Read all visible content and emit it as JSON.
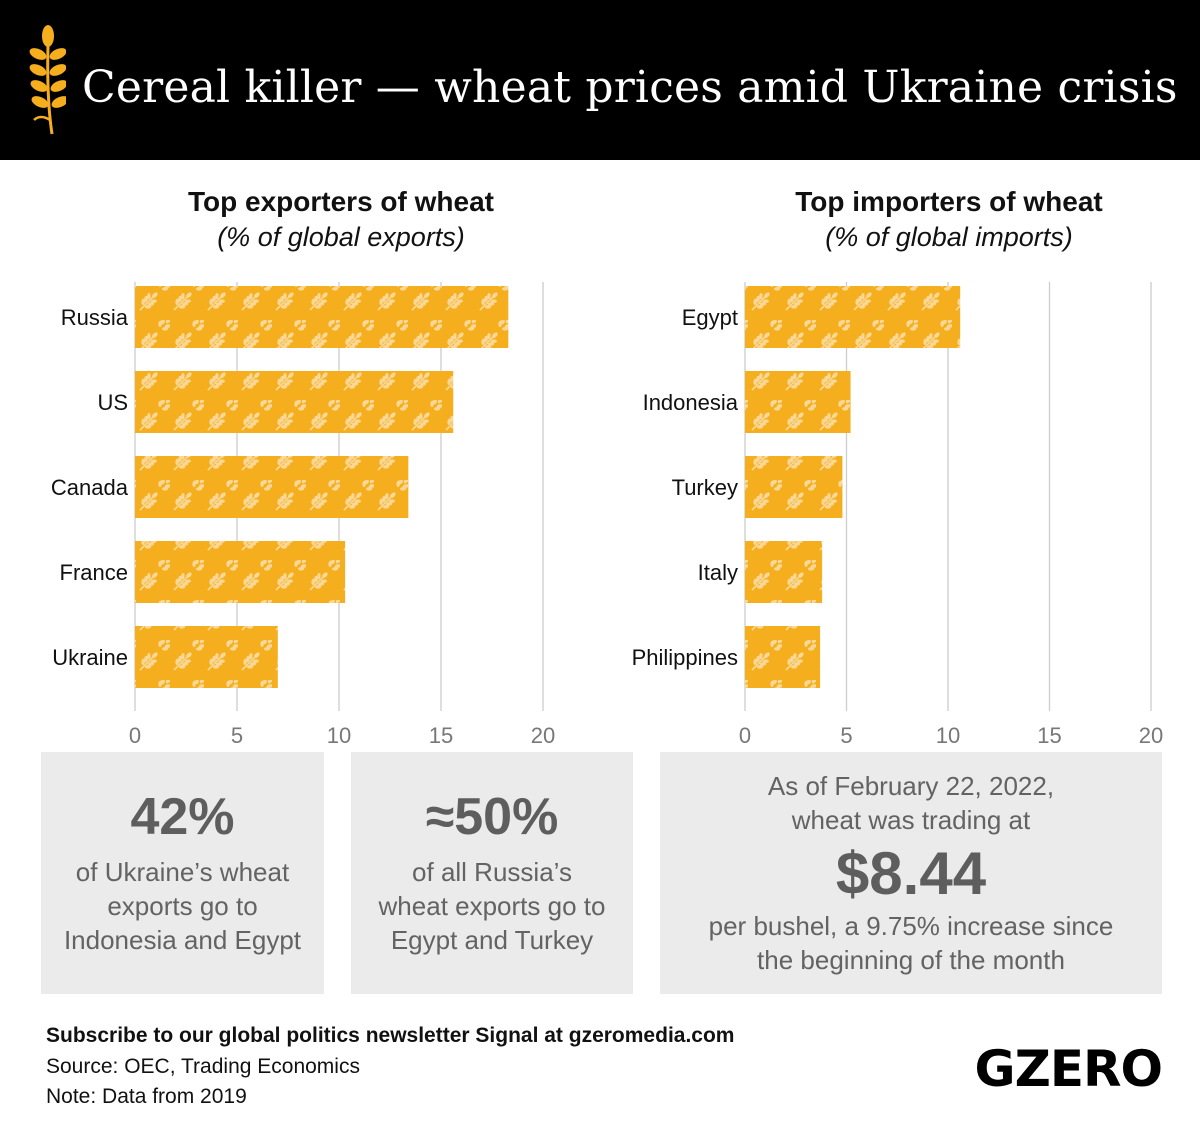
{
  "header": {
    "title": "Cereal killer — wheat prices amid Ukraine crisis",
    "icon": "wheat-icon"
  },
  "colors": {
    "header_bg": "#000000",
    "bar": "#f5ae1e",
    "bar_pattern": "#fbd896",
    "gridline": "#cccccc",
    "stat_bg": "#ebebeb",
    "stat_text": "#636363"
  },
  "chart_data": [
    {
      "type": "bar",
      "orientation": "horizontal",
      "title": "Top exporters of wheat",
      "subtitle": "(% of global exports)",
      "categories": [
        "Russia",
        "US",
        "Canada",
        "France",
        "Ukraine"
      ],
      "values": [
        18.3,
        15.6,
        13.4,
        10.3,
        7.0
      ],
      "xlim": [
        0,
        20
      ],
      "xticks": [
        "0",
        "5",
        "10",
        "15",
        "20"
      ],
      "xlabel": "",
      "ylabel": "",
      "grid": true,
      "bar_fill": "wheat-pattern"
    },
    {
      "type": "bar",
      "orientation": "horizontal",
      "title": "Top importers of wheat",
      "subtitle": "(% of global imports)",
      "categories": [
        "Egypt",
        "Indonesia",
        "Turkey",
        "Italy",
        "Philippines"
      ],
      "values": [
        10.6,
        5.2,
        4.8,
        3.8,
        3.7
      ],
      "xlim": [
        0,
        20
      ],
      "xticks": [
        "0",
        "5",
        "10",
        "15",
        "20"
      ],
      "xlabel": "",
      "ylabel": "",
      "grid": true,
      "bar_fill": "wheat-pattern"
    }
  ],
  "stats": [
    {
      "big": "42%",
      "lines": [
        "of Ukraine’s wheat",
        "exports go to",
        "Indonesia and Egypt"
      ]
    },
    {
      "big": "≈50%",
      "lines": [
        "of all Russia’s",
        "wheat exports go to",
        "Egypt and Turkey"
      ]
    },
    {
      "pre": [
        "As of February 22, 2022,",
        "wheat was trading at"
      ],
      "big": "$8.44",
      "post": [
        "per bushel, a 9.75% increase since",
        "the beginning of the month"
      ]
    }
  ],
  "footer": {
    "subscribe": "Subscribe to our global politics newsletter Signal at gzeromedia.com",
    "source": "Source: OEC, Trading Economics",
    "note": "Note: Data from 2019",
    "brand": "GZERO"
  }
}
